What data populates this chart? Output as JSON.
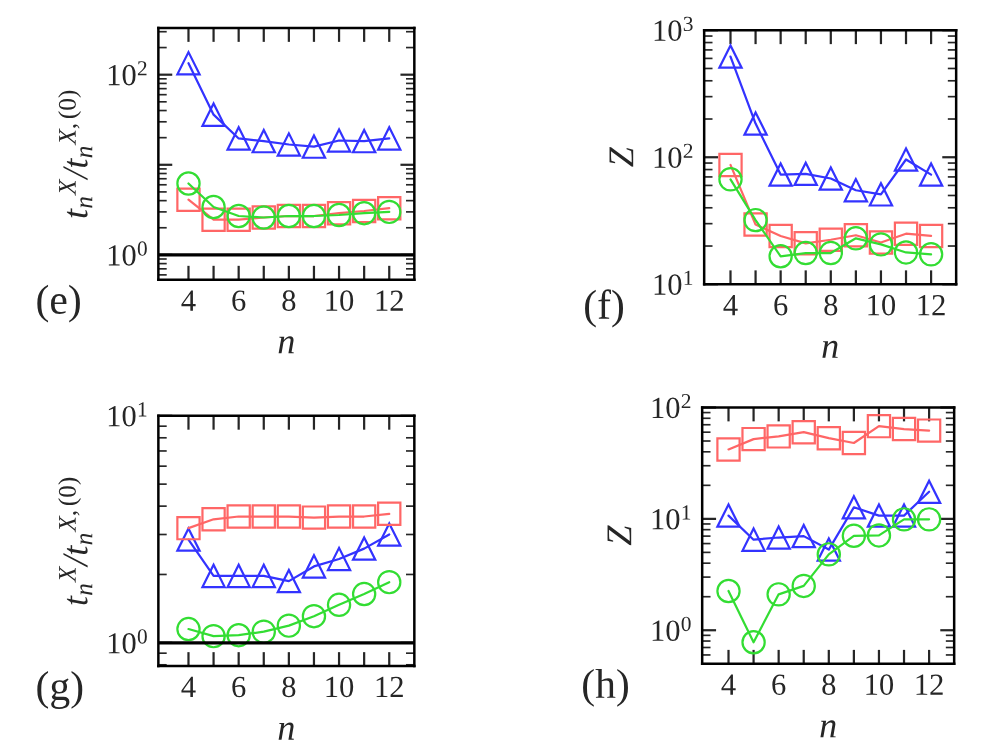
{
  "chart_data": [
    {
      "type": "line",
      "xlabel": "n",
      "ylabel": "t$_{n}$$^{X}$/t$_{n}$$^{X,(0)}$",
      "annotations": [
        "(e)"
      ],
      "log": "y",
      "xlim": [
        2.8,
        13
      ],
      "ylim": [
        0.53,
        330
      ],
      "xticks": [
        4,
        {
          "value": 5,
          "label": null
        },
        6,
        {
          "value": 7,
          "label": null
        },
        8,
        {
          "value": 9,
          "label": null
        },
        10,
        {
          "value": 11,
          "label": null
        },
        12
      ],
      "yticks": [
        {
          "value": 1,
          "label": "10$^{0}$"
        },
        {
          "value": 10,
          "label": null
        },
        {
          "value": 100,
          "label": "10$^{2}$"
        }
      ],
      "x": [
        4,
        5,
        6,
        7,
        8,
        9,
        10,
        11,
        12
      ],
      "grid": false,
      "legend": false,
      "ref_lines": [
        {
          "axis": "y",
          "value": 1,
          "color": "#000000"
        }
      ],
      "series": [
        {
          "color": "#3333ff",
          "marker": "triangle",
          "values": [
            134,
            36,
            19.6,
            18.3,
            16.8,
            15.9,
            18.6,
            18.3,
            19.6
          ]
        },
        {
          "color": "#ff6666",
          "marker": "square",
          "values": [
            4.1,
            2.46,
            2.46,
            2.6,
            2.7,
            2.7,
            2.9,
            3.07,
            3.3
          ]
        },
        {
          "color": "#33dd33",
          "marker": "circle",
          "values": [
            6.2,
            3.4,
            2.7,
            2.6,
            2.7,
            2.7,
            2.77,
            2.9,
            3.0
          ]
        }
      ]
    },
    {
      "type": "line",
      "xlabel": "n",
      "ylabel": "Z",
      "annotations": [
        "(f)"
      ],
      "log": "y",
      "xlim": [
        2.95,
        13
      ],
      "ylim": [
        10,
        1000
      ],
      "xticks": [
        4,
        {
          "value": 5,
          "label": null
        },
        6,
        {
          "value": 7,
          "label": null
        },
        8,
        {
          "value": 9,
          "label": null
        },
        10,
        {
          "value": 11,
          "label": null
        },
        12
      ],
      "yticks": [
        {
          "value": 10,
          "label": "10$^{1}$"
        },
        {
          "value": 100,
          "label": "10$^{2}$"
        },
        {
          "value": 1000,
          "label": "10$^{3}$"
        }
      ],
      "x": [
        4,
        5,
        6,
        7,
        8,
        9,
        10,
        11,
        12
      ],
      "grid": false,
      "legend": false,
      "series": [
        {
          "color": "#3333ff",
          "marker": "triangle",
          "values": [
            620,
            184,
            73,
            74,
            68,
            55,
            51,
            96,
            73
          ]
        },
        {
          "color": "#ff6666",
          "marker": "square",
          "values": [
            87,
            29.5,
            24,
            21,
            22.4,
            24.3,
            21.3,
            25,
            24
          ]
        },
        {
          "color": "#33dd33",
          "marker": "circle",
          "values": [
            67,
            32,
            16.6,
            17.6,
            17.6,
            23,
            20.6,
            17.8,
            17.2
          ]
        }
      ]
    },
    {
      "type": "line",
      "xlabel": "n",
      "ylabel": "t$_{n}$$^{X}$/t$_{n}$$^{X,(0)}$",
      "annotations": [
        "(g)"
      ],
      "log": "y",
      "xlim": [
        2.8,
        13
      ],
      "ylim": [
        0.79,
        10
      ],
      "xticks": [
        4,
        {
          "value": 5,
          "label": null
        },
        6,
        {
          "value": 7,
          "label": null
        },
        8,
        {
          "value": 9,
          "label": null
        },
        10,
        {
          "value": 11,
          "label": null
        },
        12
      ],
      "yticks": [
        {
          "value": 1,
          "label": "10$^{0}$"
        },
        {
          "value": 10,
          "label": "10$^{1}$"
        }
      ],
      "x": [
        4,
        5,
        6,
        7,
        8,
        9,
        10,
        11,
        12
      ],
      "grid": false,
      "legend": false,
      "ref_lines": [
        {
          "axis": "y",
          "value": 1,
          "color": "#000000"
        }
      ],
      "series": [
        {
          "color": "#3333ff",
          "marker": "triangle",
          "values": [
            2.85,
            1.97,
            1.97,
            1.97,
            1.87,
            2.17,
            2.34,
            2.6,
            3.0
          ]
        },
        {
          "color": "#ff6666",
          "marker": "square",
          "values": [
            3.2,
            3.5,
            3.6,
            3.6,
            3.6,
            3.56,
            3.6,
            3.6,
            3.7
          ]
        },
        {
          "color": "#33dd33",
          "marker": "circle",
          "values": [
            1.15,
            1.07,
            1.08,
            1.12,
            1.19,
            1.31,
            1.47,
            1.64,
            1.85
          ]
        }
      ]
    },
    {
      "type": "line",
      "xlabel": "n",
      "ylabel": "Z",
      "annotations": [
        "(h)"
      ],
      "log": "y",
      "xlim": [
        2.95,
        13
      ],
      "ylim": [
        0.5,
        100
      ],
      "xticks": [
        4,
        {
          "value": 5,
          "label": null
        },
        6,
        {
          "value": 7,
          "label": null
        },
        8,
        {
          "value": 9,
          "label": null
        },
        10,
        {
          "value": 11,
          "label": null
        },
        12
      ],
      "yticks": [
        {
          "value": 1,
          "label": "10$^{0}$"
        },
        {
          "value": 10,
          "label": "10$^{1}$"
        },
        {
          "value": 100,
          "label": "10$^{2}$"
        }
      ],
      "x": [
        4,
        5,
        6,
        7,
        8,
        9,
        10,
        11,
        12
      ],
      "grid": false,
      "legend": false,
      "series": [
        {
          "color": "#ff6666",
          "marker": "square",
          "values": [
            42,
            52,
            55,
            60,
            53,
            48,
            68,
            64,
            62
          ]
        },
        {
          "color": "#3333ff",
          "marker": "triangle",
          "values": [
            10.7,
            6.5,
            6.8,
            7.0,
            5.3,
            12.7,
            10.7,
            10.7,
            17.5
          ]
        },
        {
          "color": "#33dd33",
          "marker": "circle",
          "values": [
            2.25,
            0.78,
            2.1,
            2.5,
            4.8,
            7.05,
            7.1,
            9.9,
            9.9
          ]
        }
      ]
    }
  ]
}
